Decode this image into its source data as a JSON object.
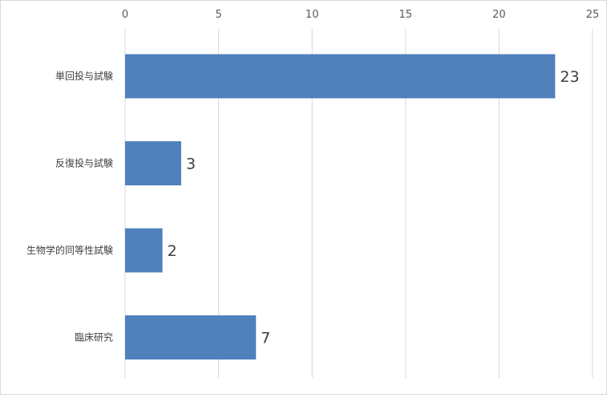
{
  "chart_data": {
    "type": "bar",
    "orientation": "horizontal",
    "categories": [
      "単回投与試験",
      "反復投与試験",
      "生物学的同等性試験",
      "臨床研究"
    ],
    "values": [
      23,
      3,
      2,
      7
    ],
    "xlim": [
      0,
      25
    ],
    "x_ticks": [
      0,
      5,
      10,
      15,
      20,
      25
    ],
    "x_tick_labels": [
      "0",
      "5",
      "10",
      "15",
      "20",
      "25"
    ],
    "data_labels": [
      "23",
      "3",
      "2",
      "7"
    ],
    "title": "",
    "xlabel": "",
    "ylabel": "",
    "axis_position": "top",
    "grid": "vertical",
    "legend": "none",
    "bar_color": "#4f81bd",
    "grid_color": "#d9d9d9"
  }
}
